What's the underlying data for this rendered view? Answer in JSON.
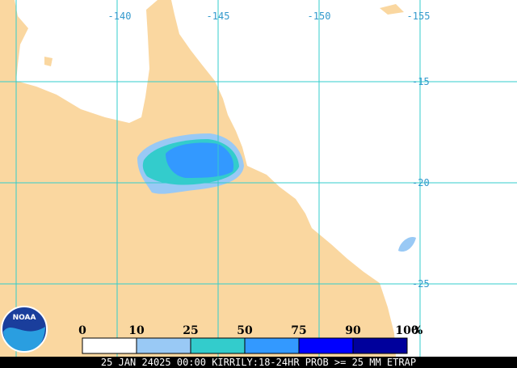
{
  "map": {
    "lon_labels": [
      "-140",
      "-145",
      "-150",
      "-155"
    ],
    "lat_labels": [
      "-15",
      "-20",
      "-25"
    ],
    "logo": "NOAA",
    "legend": {
      "labels": [
        "0",
        "10",
        "25",
        "50",
        "75",
        "90",
        "100"
      ],
      "unit": "%",
      "colors": [
        "#ffffff",
        "#99c9f5",
        "#33cccc",
        "#3399ff",
        "#0000ff",
        "#00009c"
      ]
    },
    "caption": "25 JAN 24025 00:00 KIRRILY:18-24HR PROB >= 25 MM ETRAP"
  }
}
